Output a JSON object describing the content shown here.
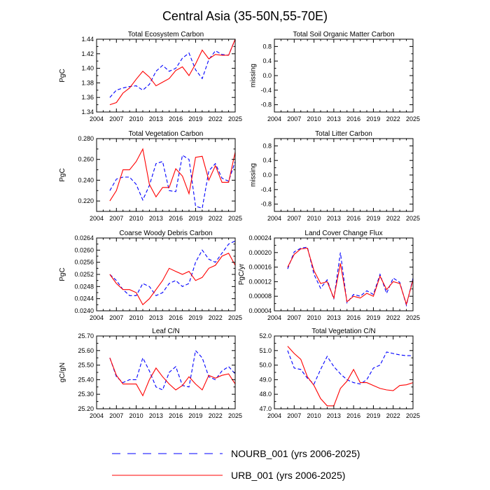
{
  "title": "Central Asia (35-50N,55-70E)",
  "colors": {
    "nourb": "#0000ff",
    "urb": "#ff0000",
    "axis": "#000000"
  },
  "legend": [
    {
      "name": "NOURB_001 (yrs 2006-2025)",
      "color": "#0000ff",
      "dash": "dashed"
    },
    {
      "name": "URB_001 (yrs 2006-2025)",
      "color": "#ff0000",
      "dash": "solid"
    }
  ],
  "chart_data": [
    {
      "type": "line",
      "title": "Total Ecosystem Carbon",
      "ylabel": "PgC",
      "xlim": [
        2004,
        2025
      ],
      "ylim": [
        1.34,
        1.44
      ],
      "xticks": [
        "2004",
        "2007",
        "2010",
        "2013",
        "2016",
        "2019",
        "2022",
        "2025"
      ],
      "yticks": [
        "1.34",
        "1.36",
        "1.38",
        "1.40",
        "1.42",
        "1.44"
      ],
      "x": [
        2006,
        2007,
        2008,
        2009,
        2010,
        2011,
        2012,
        2013,
        2014,
        2015,
        2016,
        2017,
        2018,
        2019,
        2020,
        2021,
        2022,
        2023,
        2024,
        2025
      ],
      "series": [
        {
          "name": "NOURB_001",
          "values": [
            1.36,
            1.37,
            1.373,
            1.375,
            1.376,
            1.37,
            1.378,
            1.396,
            1.404,
            1.396,
            1.4,
            1.414,
            1.421,
            1.398,
            1.386,
            1.412,
            1.424,
            1.419,
            1.418,
            1.44
          ]
        },
        {
          "name": "URB_001",
          "values": [
            1.35,
            1.353,
            1.366,
            1.373,
            1.385,
            1.396,
            1.388,
            1.376,
            1.381,
            1.386,
            1.397,
            1.402,
            1.39,
            1.406,
            1.425,
            1.413,
            1.419,
            1.418,
            1.418,
            1.44
          ]
        }
      ]
    },
    {
      "type": "line",
      "title": "Total Soil Organic Matter Carbon",
      "ylabel": "missing",
      "xlim": [
        2004,
        2025
      ],
      "ylim": [
        -1,
        1
      ],
      "xticks": [
        "2004",
        "2007",
        "2010",
        "2013",
        "2016",
        "2019",
        "2022",
        "2025"
      ],
      "yticks": [
        "-0.8",
        "-0.4",
        "0.0",
        "0.4",
        "0.8"
      ],
      "x": [],
      "series": []
    },
    {
      "type": "line",
      "title": "Total Vegetation Carbon",
      "ylabel": "PgC",
      "xlim": [
        2004,
        2025
      ],
      "ylim": [
        0.21,
        0.28
      ],
      "xticks": [
        "2004",
        "2007",
        "2010",
        "2013",
        "2016",
        "2019",
        "2022",
        "2025"
      ],
      "yticks": [
        "0.220",
        "0.240",
        "0.260",
        "0.280"
      ],
      "x": [
        2006,
        2007,
        2008,
        2009,
        2010,
        2011,
        2012,
        2013,
        2014,
        2015,
        2016,
        2017,
        2018,
        2019,
        2020,
        2021,
        2022,
        2023,
        2024,
        2025
      ],
      "series": [
        {
          "name": "NOURB_001",
          "values": [
            0.23,
            0.241,
            0.243,
            0.243,
            0.236,
            0.221,
            0.235,
            0.256,
            0.258,
            0.23,
            0.229,
            0.264,
            0.26,
            0.215,
            0.213,
            0.249,
            0.256,
            0.242,
            0.239,
            0.258
          ]
        },
        {
          "name": "URB_001",
          "values": [
            0.22,
            0.23,
            0.25,
            0.25,
            0.258,
            0.27,
            0.236,
            0.224,
            0.233,
            0.233,
            0.251,
            0.244,
            0.227,
            0.262,
            0.263,
            0.24,
            0.254,
            0.238,
            0.238,
            0.267
          ]
        }
      ]
    },
    {
      "type": "line",
      "title": "Total Litter Carbon",
      "ylabel": "missing",
      "xlim": [
        2004,
        2025
      ],
      "ylim": [
        -1,
        1
      ],
      "xticks": [
        "2004",
        "2007",
        "2010",
        "2013",
        "2016",
        "2019",
        "2022",
        "2025"
      ],
      "yticks": [
        "-0.8",
        "-0.4",
        "0.0",
        "0.4",
        "0.8"
      ],
      "x": [],
      "series": []
    },
    {
      "type": "line",
      "title": "Coarse Woody Debris Carbon",
      "ylabel": "PgC",
      "xlim": [
        2004,
        2025
      ],
      "ylim": [
        0.024,
        0.0264
      ],
      "xticks": [
        "2004",
        "2007",
        "2010",
        "2013",
        "2016",
        "2019",
        "2022",
        "2025"
      ],
      "yticks": [
        "0.0240",
        "0.0244",
        "0.0248",
        "0.0252",
        "0.0256",
        "0.0260",
        "0.0264"
      ],
      "x": [
        2006,
        2007,
        2008,
        2009,
        2010,
        2011,
        2012,
        2013,
        2014,
        2015,
        2016,
        2017,
        2018,
        2019,
        2020,
        2021,
        2022,
        2023,
        2024,
        2025
      ],
      "series": [
        {
          "name": "NOURB_001",
          "values": [
            0.0252,
            0.025,
            0.0247,
            0.0245,
            0.0245,
            0.0249,
            0.0248,
            0.0245,
            0.0246,
            0.0249,
            0.025,
            0.0248,
            0.0249,
            0.0256,
            0.026,
            0.0257,
            0.0256,
            0.0259,
            0.0262,
            0.0263
          ]
        },
        {
          "name": "URB_001",
          "values": [
            0.0252,
            0.0249,
            0.0247,
            0.0247,
            0.0246,
            0.0242,
            0.0244,
            0.0247,
            0.025,
            0.0254,
            0.0253,
            0.0252,
            0.0253,
            0.025,
            0.0251,
            0.0254,
            0.0255,
            0.0258,
            0.0259,
            0.0255
          ]
        }
      ]
    },
    {
      "type": "line",
      "title": "Land Cover Change Flux",
      "ylabel": "PgC/yr",
      "xlim": [
        2004,
        2025
      ],
      "ylim": [
        4e-05,
        0.00024
      ],
      "xticks": [
        "2004",
        "2007",
        "2010",
        "2013",
        "2016",
        "2019",
        "2022",
        "2025"
      ],
      "yticks": [
        "0.00004",
        "0.00008",
        "0.00012",
        "0.00016",
        "0.00020",
        "0.00024"
      ],
      "x": [
        2006,
        2007,
        2008,
        2009,
        2010,
        2011,
        2012,
        2013,
        2014,
        2015,
        2016,
        2017,
        2018,
        2019,
        2020,
        2021,
        2022,
        2023,
        2024,
        2025
      ],
      "series": [
        {
          "name": "NOURB_001",
          "values": [
            0.000155,
            0.000202,
            0.000212,
            0.000215,
            0.00014,
            0.000102,
            0.000125,
            7.2e-05,
            0.0002,
            6.2e-05,
            8.5e-05,
            8e-05,
            9.5e-05,
            8.5e-05,
            0.00014,
            8.8e-05,
            0.00013,
            0.000118,
            5.5e-05,
            0.00013
          ]
        },
        {
          "name": "URB_001",
          "values": [
            0.00016,
            0.000195,
            0.00021,
            0.000212,
            0.00015,
            0.000115,
            0.00012,
            7.5e-05,
            0.00017,
            6.5e-05,
            8e-05,
            7.5e-05,
            8.8e-05,
            8e-05,
            0.000135,
            9.8e-05,
            0.00012,
            0.000115,
            5.8e-05,
            0.000125
          ]
        }
      ]
    },
    {
      "type": "line",
      "title": "Leaf C/N",
      "ylabel": "gC/gN",
      "xlim": [
        2004,
        2025
      ],
      "ylim": [
        25.2,
        25.7
      ],
      "xticks": [
        "2004",
        "2007",
        "2010",
        "2013",
        "2016",
        "2019",
        "2022",
        "2025"
      ],
      "yticks": [
        "25.20",
        "25.30",
        "25.40",
        "25.50",
        "25.60",
        "25.70"
      ],
      "x": [
        2006,
        2007,
        2008,
        2009,
        2010,
        2011,
        2012,
        2013,
        2014,
        2015,
        2016,
        2017,
        2018,
        2019,
        2020,
        2021,
        2022,
        2023,
        2024,
        2025
      ],
      "series": [
        {
          "name": "NOURB_001",
          "values": [
            25.55,
            25.42,
            25.38,
            25.4,
            25.4,
            25.55,
            25.46,
            25.35,
            25.33,
            25.45,
            25.49,
            25.36,
            25.35,
            25.6,
            25.55,
            25.42,
            25.4,
            25.46,
            25.49,
            25.44
          ]
        },
        {
          "name": "URB_001",
          "values": [
            25.55,
            25.43,
            25.37,
            25.37,
            25.37,
            25.29,
            25.4,
            25.48,
            25.42,
            25.37,
            25.33,
            25.36,
            25.42,
            25.37,
            25.33,
            25.43,
            25.41,
            25.43,
            25.44,
            25.37
          ]
        }
      ]
    },
    {
      "type": "line",
      "title": "Total Vegetation C/N",
      "ylabel": "",
      "xlim": [
        2004,
        2025
      ],
      "ylim": [
        47.0,
        52.0
      ],
      "xticks": [
        "2004",
        "2007",
        "2010",
        "2013",
        "2016",
        "2019",
        "2022",
        "2025"
      ],
      "yticks": [
        "47.0",
        "48.0",
        "49.0",
        "50.0",
        "51.0",
        "52.0"
      ],
      "x": [
        2006,
        2007,
        2008,
        2009,
        2010,
        2011,
        2012,
        2013,
        2014,
        2015,
        2016,
        2017,
        2018,
        2019,
        2020,
        2021,
        2022,
        2023,
        2024,
        2025
      ],
      "series": [
        {
          "name": "NOURB_001",
          "values": [
            51.0,
            49.8,
            49.7,
            49.1,
            48.7,
            49.7,
            50.6,
            49.9,
            49.4,
            49.0,
            48.8,
            48.7,
            49.0,
            49.8,
            50.0,
            50.9,
            50.8,
            50.7,
            50.65,
            50.65
          ]
        },
        {
          "name": "URB_001",
          "values": [
            51.3,
            50.8,
            50.4,
            49.2,
            48.6,
            47.7,
            47.2,
            47.2,
            48.4,
            48.9,
            49.7,
            48.8,
            48.8,
            48.6,
            48.4,
            48.3,
            48.25,
            48.6,
            48.65,
            48.8
          ]
        }
      ]
    }
  ]
}
